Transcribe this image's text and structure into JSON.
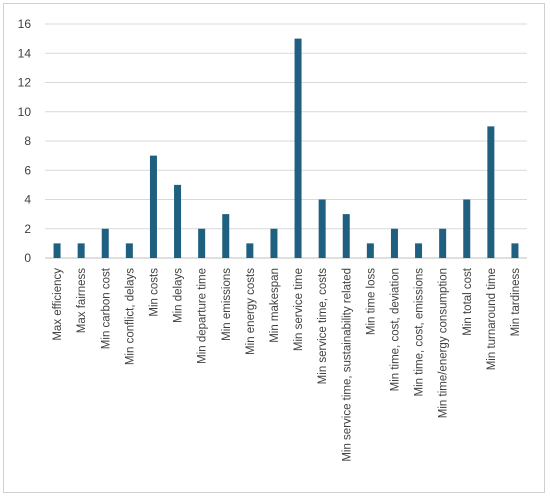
{
  "chart_data": {
    "type": "bar",
    "title": "",
    "xlabel": "",
    "ylabel": "",
    "ylim": [
      0,
      16
    ],
    "yticks": [
      0,
      2,
      4,
      6,
      8,
      10,
      12,
      14,
      16
    ],
    "grid": true,
    "legend": "none",
    "bar_color": "#1f5f7f",
    "categories": [
      "Max efficiency",
      "Max fairness",
      "Min carbon cost",
      "Min conflict, delays",
      "Min costs",
      "Min delays",
      "Min departure time",
      "Min emissions",
      "Min energy costs",
      "Min makespan",
      "Min service time",
      "Min service time, costs",
      "Min service time, sustainability related",
      "Min time loss",
      "Min time, cost, deviation",
      "Min time, cost, emissions",
      "Min time/energy consumption",
      "Min total cost",
      "Min turnaround time",
      "Min tardiness"
    ],
    "values": [
      1,
      1,
      2,
      1,
      7,
      5,
      2,
      3,
      1,
      2,
      15,
      4,
      3,
      1,
      2,
      1,
      2,
      4,
      9,
      1
    ]
  }
}
